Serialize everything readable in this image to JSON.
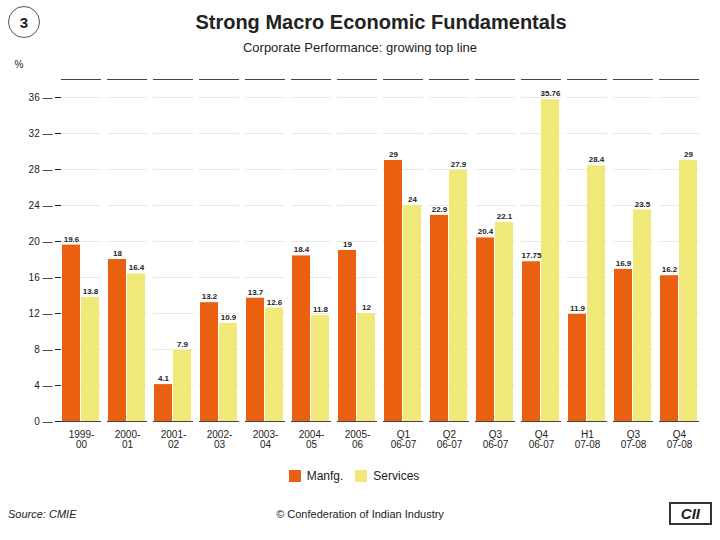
{
  "chart_data": {
    "type": "bar",
    "title": "Strong Macro Economic Fundamentals",
    "subtitle": "Corporate Performance: growing top line",
    "annotations": [
      "3",
      "Source: CMIE",
      "© Confederation of Indian Industry",
      "CII"
    ],
    "categories": [
      "1999-\n00",
      "2000-\n01",
      "2001-\n02",
      "2002-\n03",
      "2003-\n04",
      "2004-\n05",
      "2005-\n06",
      "Q1\n06-07",
      "Q2\n06-07",
      "Q3\n06-07",
      "Q4\n06-07",
      "H1\n07-08",
      "Q3\n07-08",
      "Q4\n07-08"
    ],
    "series": [
      {
        "name": "Manfg.",
        "color": "#E86010",
        "values": [
          19.6,
          18,
          4.1,
          13.2,
          13.7,
          18.4,
          19,
          29,
          22.9,
          20.4,
          17.75,
          11.9,
          16.9,
          16.2
        ]
      },
      {
        "name": "Services",
        "color": "#F0E878",
        "values": [
          13.8,
          16.4,
          7.9,
          10.9,
          12.6,
          11.8,
          12,
          24,
          27.9,
          22.1,
          35.76,
          28.4,
          23.5,
          29
        ]
      }
    ],
    "ylabel": "%",
    "ylim": [
      0,
      38
    ],
    "yticks": [
      {
        "value": 0,
        "label": "0 —"
      },
      {
        "value": 4,
        "label": "4 —"
      },
      {
        "value": 8,
        "label": "8 —"
      },
      {
        "value": 12,
        "label": "12 —"
      },
      {
        "value": 16,
        "label": "16 —"
      },
      {
        "value": 20,
        "label": "20 —"
      },
      {
        "value": 24,
        "label": "24 —"
      },
      {
        "value": 28,
        "label": "28 —"
      },
      {
        "value": 32,
        "label": "32 —"
      },
      {
        "value": 36,
        "label": "36 —"
      }
    ],
    "grid": true,
    "legend": "bottom",
    "data_labels": true
  }
}
